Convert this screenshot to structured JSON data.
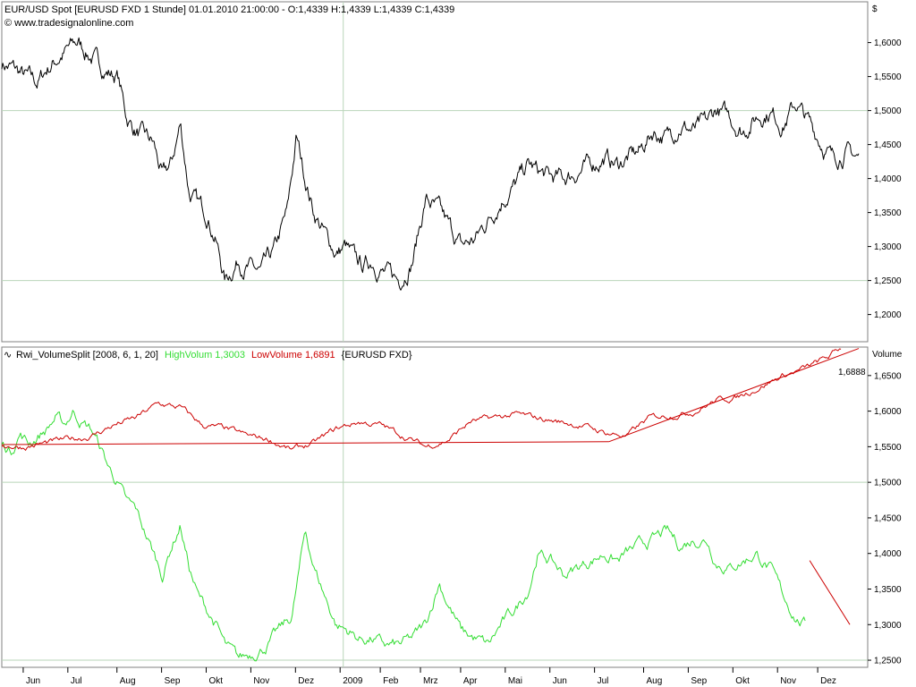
{
  "top_panel": {
    "title": "EUR/USD Spot [EURUSD FXD  1 Stunde] 01.01.2010 21:00:00 - O:1,4339 H:1,4339 L:1,4339 C:1,4339",
    "source": "© www.tradesignalonline.com",
    "axis_unit": "$"
  },
  "bottom_panel": {
    "indicator_name": "Rwi_VolumeSplit [2008, 6, 1, 20]",
    "high_label": "HighVolum 1,3003",
    "low_label": "LowVolume 1,6891",
    "symbol": "{EURUSD FXD}",
    "axis_unit": "Volume",
    "last_value_label": "1,6888"
  },
  "colors": {
    "price": "#000000",
    "high_volume": "#33dd33",
    "low_volume": "#cc0000",
    "grid": "#b9d5b9",
    "border": "#808080"
  },
  "chart_data": [
    {
      "type": "line",
      "name": "price",
      "ylim": [
        1.16,
        1.66
      ],
      "yticks": [
        "1,2000",
        "1,2500",
        "1,3000",
        "1,3500",
        "1,4000",
        "1,4500",
        "1,5000",
        "1,5500",
        "1,6000"
      ],
      "ytick_values": [
        1.2,
        1.25,
        1.3,
        1.35,
        1.4,
        1.45,
        1.5,
        1.55,
        1.6
      ],
      "series": [
        {
          "name": "EUR/USD Spot",
          "x": [
            0,
            0.3,
            0.5,
            0.8,
            1.0,
            1.3,
            1.5,
            1.7,
            2.0,
            2.3,
            2.6,
            2.8,
            3.0,
            3.2,
            3.4,
            3.6,
            3.8,
            4.0,
            4.2,
            4.4,
            4.6,
            4.8,
            5.0,
            5.3,
            5.5,
            5.8,
            6.1,
            6.4,
            6.6,
            6.8,
            7.0,
            7.3,
            7.5,
            7.7,
            7.9,
            8.1,
            8.3,
            8.6,
            8.9,
            9.2,
            9.5,
            9.8,
            10.0,
            10.3,
            10.6,
            10.9,
            11.2,
            11.5,
            11.8,
            12.0,
            12.3,
            12.6,
            12.9,
            13.2,
            13.5,
            13.8,
            14.0,
            14.3,
            14.6,
            14.9,
            15.2,
            15.5,
            15.8,
            16.0,
            16.3,
            16.6,
            16.9,
            17.2,
            17.5,
            17.8,
            18.0,
            18.3,
            18.6,
            18.9,
            19.2
          ],
          "y": [
            1.57,
            1.56,
            1.55,
            1.54,
            1.56,
            1.58,
            1.59,
            1.6,
            1.58,
            1.56,
            1.55,
            1.49,
            1.47,
            1.46,
            1.45,
            1.4,
            1.42,
            1.48,
            1.38,
            1.36,
            1.35,
            1.31,
            1.25,
            1.28,
            1.27,
            1.26,
            1.29,
            1.35,
            1.46,
            1.4,
            1.35,
            1.31,
            1.29,
            1.3,
            1.28,
            1.27,
            1.28,
            1.26,
            1.25,
            1.28,
            1.37,
            1.35,
            1.33,
            1.3,
            1.31,
            1.34,
            1.37,
            1.39,
            1.42,
            1.41,
            1.4,
            1.4,
            1.41,
            1.42,
            1.43,
            1.42,
            1.43,
            1.44,
            1.47,
            1.46,
            1.48,
            1.47,
            1.48,
            1.5,
            1.49,
            1.47,
            1.49,
            1.5,
            1.48,
            1.51,
            1.49,
            1.46,
            1.43,
            1.44,
            1.43
          ]
        }
      ]
    },
    {
      "type": "line",
      "name": "volume_split",
      "ylim": [
        1.24,
        1.69
      ],
      "yticks": [
        "1,2500",
        "1,3000",
        "1,3500",
        "1,4000",
        "1,4500",
        "1,5000",
        "1,5500",
        "1,6000",
        "1,6500"
      ],
      "ytick_values": [
        1.25,
        1.3,
        1.35,
        1.4,
        1.45,
        1.5,
        1.55,
        1.6,
        1.65
      ],
      "series": [
        {
          "name": "HighVolum",
          "x": [
            0,
            0.2,
            0.4,
            0.6,
            0.8,
            1.0,
            1.2,
            1.4,
            1.6,
            1.8,
            2.0,
            2.2,
            2.4,
            2.6,
            2.8,
            3.0,
            3.2,
            3.4,
            3.6,
            3.8,
            4.0,
            4.2,
            4.4,
            4.6,
            4.8,
            5.0,
            5.3,
            5.6,
            5.9,
            6.2,
            6.5,
            6.8,
            7.0,
            7.3,
            7.5,
            7.8,
            8.0,
            8.3,
            8.6,
            8.9,
            9.2,
            9.5,
            9.8,
            10.0,
            10.3,
            10.6,
            10.9,
            11.2,
            11.5,
            11.8,
            12.0,
            12.3,
            12.6,
            12.9,
            13.2,
            13.5,
            13.8,
            14.0,
            14.3,
            14.6,
            14.9,
            15.2,
            15.5,
            15.8,
            16.0,
            16.3,
            16.6,
            16.9,
            17.2,
            17.5,
            17.8,
            18.0
          ],
          "y": [
            1.555,
            1.545,
            1.57,
            1.555,
            1.565,
            1.575,
            1.59,
            1.58,
            1.6,
            1.585,
            1.575,
            1.55,
            1.52,
            1.5,
            1.47,
            1.46,
            1.43,
            1.4,
            1.37,
            1.41,
            1.44,
            1.38,
            1.34,
            1.32,
            1.3,
            1.27,
            1.25,
            1.26,
            1.27,
            1.29,
            1.31,
            1.43,
            1.38,
            1.33,
            1.3,
            1.29,
            1.28,
            1.28,
            1.27,
            1.27,
            1.28,
            1.3,
            1.36,
            1.33,
            1.29,
            1.28,
            1.27,
            1.3,
            1.32,
            1.35,
            1.4,
            1.39,
            1.37,
            1.38,
            1.39,
            1.4,
            1.39,
            1.4,
            1.41,
            1.42,
            1.43,
            1.41,
            1.42,
            1.42,
            1.39,
            1.38,
            1.39,
            1.4,
            1.38,
            1.34,
            1.31,
            1.3
          ]
        },
        {
          "name": "LowVolume",
          "x": [
            0,
            0.5,
            1.0,
            1.5,
            2.0,
            2.5,
            3.0,
            3.5,
            4.0,
            4.5,
            5.0,
            5.5,
            6.0,
            6.5,
            7.0,
            7.5,
            8.0,
            8.5,
            9.0,
            9.5,
            10.0,
            10.5,
            11.0,
            11.5,
            12.0,
            12.5,
            13.0,
            13.5,
            14.0,
            14.5,
            15.0,
            15.5,
            16.0,
            16.5,
            17.0,
            17.5,
            18.0,
            18.5,
            18.8
          ],
          "y": [
            1.553,
            1.55,
            1.555,
            1.56,
            1.565,
            1.58,
            1.59,
            1.61,
            1.605,
            1.58,
            1.575,
            1.565,
            1.56,
            1.545,
            1.555,
            1.575,
            1.585,
            1.58,
            1.565,
            1.55,
            1.56,
            1.585,
            1.59,
            1.595,
            1.59,
            1.585,
            1.58,
            1.57,
            1.565,
            1.59,
            1.595,
            1.6,
            1.615,
            1.62,
            1.635,
            1.65,
            1.66,
            1.675,
            1.689
          ]
        }
      ]
    }
  ],
  "x_axis": {
    "labels": [
      "Jun",
      "Jul",
      "Aug",
      "Sep",
      "Okt",
      "Nov",
      "Dez",
      "2009",
      "Feb",
      "Mrz",
      "Apr",
      "Mai",
      "Jun",
      "Jul",
      "Aug",
      "Sep",
      "Okt",
      "Nov",
      "Dez"
    ],
    "positions": [
      0.6,
      1.6,
      2.7,
      3.7,
      4.7,
      5.7,
      6.7,
      7.7,
      8.6,
      9.5,
      10.4,
      11.4,
      12.4,
      13.4,
      14.5,
      15.5,
      16.5,
      17.5,
      18.4
    ],
    "xlim": [
      0,
      19.4
    ]
  }
}
